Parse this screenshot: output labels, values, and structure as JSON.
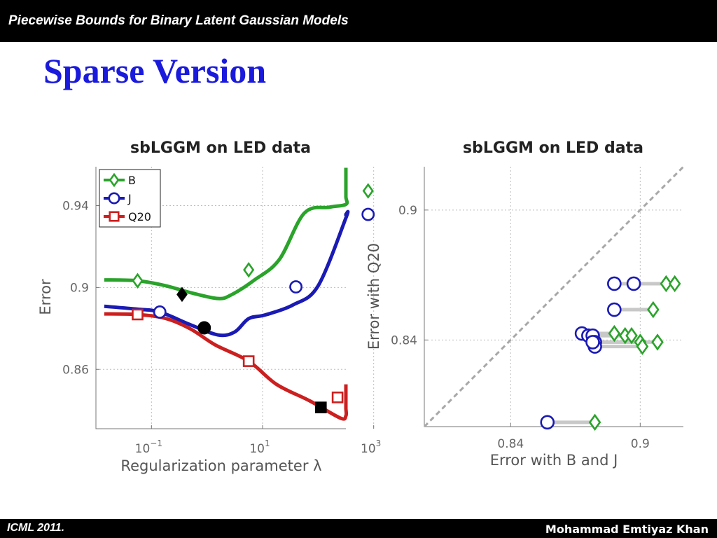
{
  "header": {
    "title": "Piecewise Bounds for Binary Latent Gaussian Models"
  },
  "slide": {
    "title": "Sparse Version"
  },
  "footer": {
    "left": "ICML 2011.",
    "right": "Mohammad Emtiyaz Khan"
  },
  "colors": {
    "B": "#2aa32a",
    "J": "#1a1ab4",
    "Q20": "#cc1f1f",
    "diag": "#a8a8a8",
    "connector": "#c8c8c8"
  },
  "chart_data": [
    {
      "type": "line",
      "title": "sbLGGM on LED data",
      "xlabel": "Regularization parameter λ",
      "ylabel": "Error",
      "xscale": "log",
      "xlim": [
        -2,
        2.5
      ],
      "ylim": [
        0.831,
        0.959
      ],
      "xticks": [
        {
          "value": -1,
          "base": "10",
          "exp": "−1"
        },
        {
          "value": 1,
          "base": "10",
          "exp": "1"
        },
        {
          "value": 3,
          "base": "10",
          "exp": "3"
        }
      ],
      "yticks": [
        {
          "value": 0.86,
          "label": "0.86"
        },
        {
          "value": 0.9,
          "label": "0.9"
        },
        {
          "value": 0.94,
          "label": "0.94"
        }
      ],
      "grid": true,
      "legend_position": "top-left",
      "series": [
        {
          "name": "B",
          "marker": "diamond",
          "x": [
            -1.85,
            -1.25,
            -0.75,
            -0.3,
            0.2,
            0.45,
            0.85,
            1.3,
            1.75,
            2.2,
            2.6,
            3.0,
            3.3,
            3.6
          ],
          "y": [
            0.9037,
            0.9033,
            0.9009,
            0.8975,
            0.8946,
            0.8966,
            0.9036,
            0.9136,
            0.9363,
            0.9392,
            0.9406,
            0.9443,
            0.9514,
            0.9585
          ],
          "markers_x": [
            -1.25,
            0.75,
            2.9
          ],
          "markers_y": [
            0.9033,
            0.9086,
            0.9472
          ]
        },
        {
          "name": "J",
          "marker": "circle",
          "x": [
            -1.85,
            -1.25,
            -0.85,
            -0.3,
            0.2,
            0.5,
            0.75,
            1.05,
            1.55,
            2.0,
            2.5,
            2.8,
            3.3,
            3.6
          ],
          "y": [
            0.8908,
            0.8894,
            0.888,
            0.8818,
            0.8768,
            0.8783,
            0.8848,
            0.8866,
            0.8915,
            0.9008,
            0.934,
            0.9357,
            0.9354,
            0.935
          ],
          "markers_x": [
            -0.85,
            1.6,
            2.9
          ],
          "markers_y": [
            0.888,
            0.9003,
            0.9357
          ]
        },
        {
          "name": "Q20",
          "marker": "square",
          "x": [
            -1.85,
            -1.25,
            -0.75,
            -0.3,
            0.15,
            0.75,
            1.25,
            1.85,
            2.4,
            2.7,
            3.05,
            3.3,
            3.6
          ],
          "y": [
            0.8871,
            0.8868,
            0.8849,
            0.8798,
            0.8719,
            0.864,
            0.8527,
            0.8446,
            0.8362,
            0.8373,
            0.8409,
            0.8437,
            0.8527
          ],
          "markers_x": [
            -1.25,
            0.75,
            3.45
          ],
          "markers_y": [
            0.8868,
            0.864,
            0.8463
          ]
        }
      ],
      "best_points": [
        {
          "series": "B",
          "marker": "diamond",
          "x": -0.45,
          "y": 0.8966
        },
        {
          "series": "J",
          "marker": "circle",
          "x": -0.05,
          "y": 0.8803
        },
        {
          "series": "Q20",
          "marker": "square",
          "x": 2.05,
          "y": 0.8414
        }
      ]
    },
    {
      "type": "scatter",
      "title": "sbLGGM on LED data",
      "xlabel": "Error with B and J",
      "ylabel": "Error with Q20",
      "xlim": [
        0.8,
        0.92
      ],
      "ylim": [
        0.8,
        0.92
      ],
      "xticks": [
        {
          "value": 0.84,
          "label": "0.84"
        },
        {
          "value": 0.9,
          "label": "0.9"
        }
      ],
      "yticks": [
        {
          "value": 0.84,
          "label": "0.84"
        },
        {
          "value": 0.9,
          "label": "0.9"
        }
      ],
      "grid": true,
      "diagonal": true,
      "pairs": [
        {
          "q20": 0.802,
          "J": 0.857,
          "B": 0.879
        },
        {
          "q20": 0.843,
          "J": 0.873,
          "B": 0.888
        },
        {
          "q20": 0.842,
          "J": 0.876,
          "B": 0.893
        },
        {
          "q20": 0.842,
          "J": 0.878,
          "B": 0.896
        },
        {
          "q20": 0.839,
          "J": 0.879,
          "B": 0.9
        },
        {
          "q20": 0.837,
          "J": 0.879,
          "B": 0.901
        },
        {
          "q20": 0.839,
          "J": 0.878,
          "B": 0.908
        },
        {
          "q20": 0.854,
          "J": 0.888,
          "B": 0.906
        },
        {
          "q20": 0.866,
          "J": 0.888,
          "B": 0.912
        },
        {
          "q20": 0.866,
          "J": 0.897,
          "B": 0.916
        }
      ]
    }
  ]
}
